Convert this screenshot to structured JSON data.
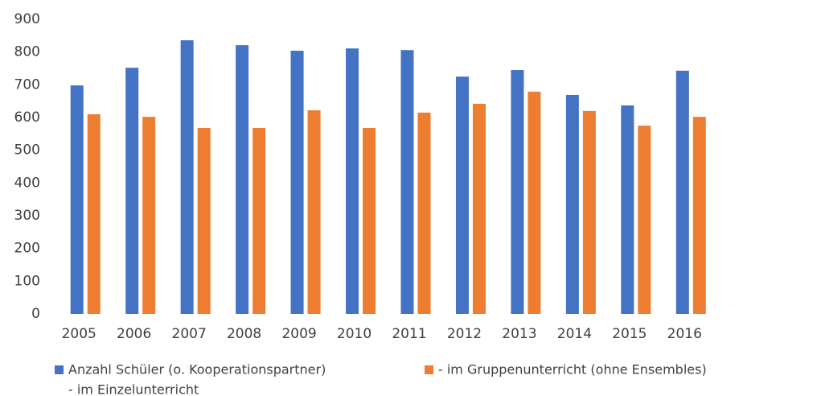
{
  "chart_data": {
    "type": "bar",
    "categories": [
      "2005",
      "2006",
      "2007",
      "2008",
      "2009",
      "2010",
      "2011",
      "2012",
      "2013",
      "2014",
      "2015",
      "2016",
      null
    ],
    "series": [
      {
        "name": "Anzahl Schüler (o. Kooperationspartner)",
        "color": "#4472c4",
        "values": [
          698,
          752,
          836,
          821,
          804,
          811,
          806,
          725,
          745,
          669,
          637,
          743,
          null
        ]
      },
      {
        "name": "- im Gruppenunterricht (ohne Ensembles)",
        "color": "#ed7d31",
        "values": [
          610,
          602,
          568,
          568,
          622,
          568,
          615,
          642,
          679,
          620,
          575,
          602,
          null
        ]
      },
      {
        "name": "- im Einzelunterricht",
        "values": [
          null,
          null,
          null,
          null,
          null,
          null,
          null,
          null,
          null,
          null,
          null,
          null,
          null
        ]
      }
    ],
    "ylim": [
      0,
      900
    ],
    "yticks": [
      0,
      100,
      200,
      300,
      400,
      500,
      600,
      700,
      800,
      900
    ],
    "grid": false
  }
}
